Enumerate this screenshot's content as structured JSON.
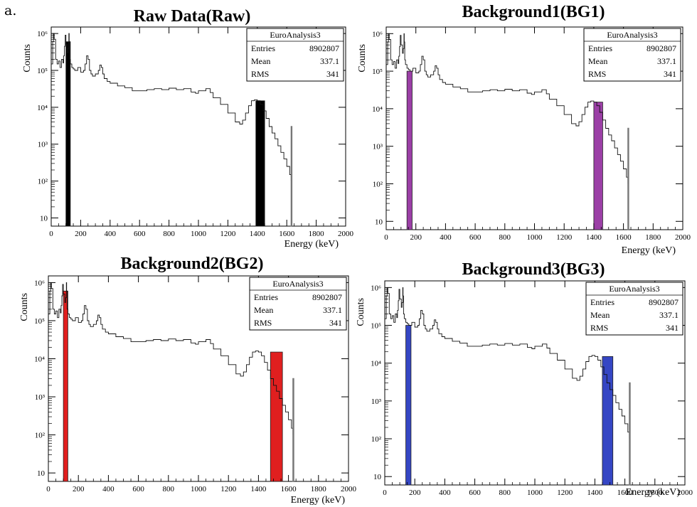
{
  "figure_label": "a.",
  "colors": {
    "raw": "#000000",
    "bg1": "#9b3fa6",
    "bg2": "#e01f1f",
    "bg3": "#3546c4"
  },
  "chart_data": [
    {
      "key": "raw",
      "type": "line",
      "title": "Raw Data(Raw)",
      "xlabel": "Energy (keV)",
      "ylabel": "Counts",
      "xlim": [
        0,
        2000
      ],
      "ylim": [
        6,
        1500000
      ],
      "yscale": "log",
      "grid": false,
      "xticks": [
        "0",
        "200",
        "400",
        "600",
        "800",
        "1000",
        "1200",
        "1400",
        "1600",
        "1800",
        "2000"
      ],
      "yticks": [
        "10",
        "10²",
        "10³",
        "10⁴",
        "10⁵",
        "10⁶"
      ],
      "stats_box": {
        "name": "EuroAnalysis3",
        "rows": [
          [
            "Entries",
            "8902807"
          ],
          [
            "Mean",
            "337.1"
          ],
          [
            "RMS",
            "341"
          ]
        ],
        "placement": "top-right"
      },
      "series": [
        {
          "x": [
            0,
            10,
            15,
            20,
            30,
            40,
            50,
            60,
            70,
            80,
            85,
            90,
            95,
            100,
            110,
            115,
            120,
            122,
            125,
            130,
            140,
            150,
            160,
            180,
            200,
            220,
            230,
            240,
            250,
            260,
            270,
            280,
            300,
            320,
            330,
            340,
            350,
            360,
            380,
            400,
            450,
            500,
            550,
            600,
            650,
            700,
            750,
            800,
            850,
            900,
            950,
            980,
            1000,
            1050,
            1080,
            1100,
            1150,
            1200,
            1250,
            1280,
            1300,
            1320,
            1340,
            1360,
            1380,
            1400,
            1420,
            1440,
            1460,
            1480,
            1500,
            1520,
            1540,
            1560,
            1580,
            1600,
            1620,
            1630
          ],
          "y": [
            150000,
            600000,
            1000000,
            700000,
            200000,
            150000,
            180000,
            120000,
            200000,
            160000,
            250000,
            450000,
            900000,
            500000,
            300000,
            400000,
            1000000,
            600000,
            200000,
            150000,
            120000,
            110000,
            100000,
            120000,
            90000,
            100000,
            150000,
            250000,
            200000,
            100000,
            80000,
            70000,
            80000,
            100000,
            140000,
            120000,
            80000,
            60000,
            50000,
            45000,
            38000,
            34000,
            28000,
            28000,
            30000,
            32000,
            30000,
            33000,
            30000,
            32000,
            26000,
            24000,
            28000,
            32000,
            25000,
            18000,
            12000,
            7000,
            4000,
            3500,
            4500,
            7000,
            11000,
            15000,
            16000,
            15000,
            12000,
            8000,
            5000,
            3000,
            2000,
            1400,
            900,
            600,
            400,
            250,
            150,
            100
          ]
        },
        {
          "x": [
            1625,
            1630,
            1635
          ],
          "y": [
            6,
            3000,
            6
          ]
        }
      ],
      "highlight_bands": [
        {
          "x": [
            100,
            130
          ],
          "height": 600000
        },
        {
          "x": [
            1390,
            1450
          ],
          "height": 15000
        }
      ]
    },
    {
      "key": "bg1",
      "type": "line",
      "title": "Background1(BG1)",
      "xlabel": "Energy (keV)",
      "ylabel": "Counts",
      "xlim": [
        0,
        2000
      ],
      "ylim": [
        6,
        1500000
      ],
      "yscale": "log",
      "grid": false,
      "xticks": [
        "0",
        "200",
        "400",
        "600",
        "800",
        "1000",
        "1200",
        "1400",
        "1600",
        "1800",
        "2000"
      ],
      "yticks": [
        "10",
        "10²",
        "10³",
        "10⁴",
        "10⁵",
        "10⁶"
      ],
      "stats_box": {
        "name": "EuroAnalysis3",
        "rows": [
          [
            "Entries",
            "8902807"
          ],
          [
            "Mean",
            "337.1"
          ],
          [
            "RMS",
            "341"
          ]
        ],
        "placement": "top-right"
      },
      "series": [
        {
          "x": [
            0,
            10,
            15,
            20,
            30,
            40,
            50,
            60,
            70,
            80,
            85,
            90,
            95,
            100,
            110,
            115,
            120,
            122,
            125,
            130,
            140,
            150,
            160,
            180,
            200,
            220,
            230,
            240,
            250,
            260,
            270,
            280,
            300,
            320,
            330,
            340,
            350,
            360,
            380,
            400,
            450,
            500,
            550,
            600,
            650,
            700,
            750,
            800,
            850,
            900,
            950,
            980,
            1000,
            1050,
            1080,
            1100,
            1150,
            1200,
            1250,
            1280,
            1300,
            1320,
            1340,
            1360,
            1380,
            1400,
            1420,
            1440,
            1460,
            1480,
            1500,
            1520,
            1540,
            1560,
            1580,
            1600,
            1620,
            1630
          ],
          "y": [
            150000,
            600000,
            1000000,
            700000,
            200000,
            150000,
            180000,
            120000,
            200000,
            160000,
            250000,
            450000,
            900000,
            500000,
            300000,
            400000,
            1000000,
            600000,
            200000,
            150000,
            120000,
            110000,
            100000,
            120000,
            90000,
            100000,
            150000,
            250000,
            200000,
            100000,
            80000,
            70000,
            80000,
            100000,
            140000,
            120000,
            80000,
            60000,
            50000,
            45000,
            38000,
            34000,
            28000,
            28000,
            30000,
            32000,
            30000,
            33000,
            30000,
            32000,
            26000,
            24000,
            28000,
            32000,
            25000,
            18000,
            12000,
            7000,
            4000,
            3500,
            4500,
            7000,
            11000,
            15000,
            16000,
            15000,
            12000,
            8000,
            5000,
            3000,
            2000,
            1400,
            900,
            600,
            400,
            250,
            150,
            100
          ]
        },
        {
          "x": [
            1625,
            1630,
            1635
          ],
          "y": [
            6,
            3000,
            6
          ]
        }
      ],
      "highlight_bands": [
        {
          "x": [
            140,
            175
          ],
          "height": 100000
        },
        {
          "x": [
            1400,
            1460
          ],
          "height": 15000
        }
      ]
    },
    {
      "key": "bg2",
      "type": "line",
      "title": "Background2(BG2)",
      "xlabel": "Energy (keV)",
      "ylabel": "Counts",
      "xlim": [
        0,
        2000
      ],
      "ylim": [
        6,
        1500000
      ],
      "yscale": "log",
      "grid": false,
      "xticks": [
        "0",
        "200",
        "400",
        "600",
        "800",
        "1000",
        "1200",
        "1400",
        "1600",
        "1800",
        "2000"
      ],
      "yticks": [
        "10",
        "10²",
        "10³",
        "10⁴",
        "10⁵",
        "10⁶"
      ],
      "stats_box": {
        "name": "EuroAnalysis3",
        "rows": [
          [
            "Entries",
            "8902807"
          ],
          [
            "Mean",
            "337.1"
          ],
          [
            "RMS",
            "341"
          ]
        ],
        "placement": "top-right"
      },
      "series": [
        {
          "x": [
            0,
            10,
            15,
            20,
            30,
            40,
            50,
            60,
            70,
            80,
            85,
            90,
            95,
            100,
            110,
            115,
            120,
            122,
            125,
            130,
            140,
            150,
            160,
            180,
            200,
            220,
            230,
            240,
            250,
            260,
            270,
            280,
            300,
            320,
            330,
            340,
            350,
            360,
            380,
            400,
            450,
            500,
            550,
            600,
            650,
            700,
            750,
            800,
            850,
            900,
            950,
            980,
            1000,
            1050,
            1080,
            1100,
            1150,
            1200,
            1250,
            1280,
            1300,
            1320,
            1340,
            1360,
            1380,
            1400,
            1420,
            1440,
            1460,
            1480,
            1500,
            1520,
            1540,
            1560,
            1580,
            1600,
            1620,
            1630
          ],
          "y": [
            150000,
            600000,
            1000000,
            700000,
            200000,
            150000,
            180000,
            120000,
            200000,
            160000,
            250000,
            450000,
            900000,
            500000,
            300000,
            400000,
            1000000,
            600000,
            200000,
            150000,
            120000,
            110000,
            100000,
            120000,
            90000,
            100000,
            150000,
            250000,
            200000,
            100000,
            80000,
            70000,
            80000,
            100000,
            140000,
            120000,
            80000,
            60000,
            50000,
            45000,
            38000,
            34000,
            28000,
            28000,
            30000,
            32000,
            30000,
            33000,
            30000,
            32000,
            26000,
            24000,
            28000,
            32000,
            25000,
            18000,
            12000,
            7000,
            4000,
            3500,
            4500,
            7000,
            11000,
            15000,
            16000,
            15000,
            12000,
            8000,
            5000,
            3000,
            2000,
            1400,
            900,
            600,
            400,
            250,
            150,
            100
          ]
        },
        {
          "x": [
            1625,
            1630,
            1635
          ],
          "y": [
            6,
            3000,
            6
          ]
        }
      ],
      "highlight_bands": [
        {
          "x": [
            100,
            130
          ],
          "height": 600000
        },
        {
          "x": [
            1480,
            1560
          ],
          "height": 15000
        }
      ]
    },
    {
      "key": "bg3",
      "type": "line",
      "title": "Background3(BG3)",
      "xlabel": "Energy (keV)",
      "ylabel": "Counts",
      "xlim": [
        0,
        2000
      ],
      "ylim": [
        6,
        1500000
      ],
      "yscale": "log",
      "grid": false,
      "xticks": [
        "0",
        "200",
        "400",
        "600",
        "800",
        "1000",
        "1200",
        "1400",
        "1600",
        "1800",
        "2000"
      ],
      "yticks": [
        "10",
        "10²",
        "10³",
        "10⁴",
        "10⁵",
        "10⁶"
      ],
      "stats_box": {
        "name": "EuroAnalysis3",
        "rows": [
          [
            "Entries",
            "8902807"
          ],
          [
            "Mean",
            "337.1"
          ],
          [
            "RMS",
            "341"
          ]
        ],
        "placement": "top-right"
      },
      "series": [
        {
          "x": [
            0,
            10,
            15,
            20,
            30,
            40,
            50,
            60,
            70,
            80,
            85,
            90,
            95,
            100,
            110,
            115,
            120,
            122,
            125,
            130,
            140,
            150,
            160,
            180,
            200,
            220,
            230,
            240,
            250,
            260,
            270,
            280,
            300,
            320,
            330,
            340,
            350,
            360,
            380,
            400,
            450,
            500,
            550,
            600,
            650,
            700,
            750,
            800,
            850,
            900,
            950,
            980,
            1000,
            1050,
            1080,
            1100,
            1150,
            1200,
            1250,
            1280,
            1300,
            1320,
            1340,
            1360,
            1380,
            1400,
            1420,
            1440,
            1460,
            1480,
            1500,
            1520,
            1540,
            1560,
            1580,
            1600,
            1620,
            1630
          ],
          "y": [
            150000,
            600000,
            1000000,
            700000,
            200000,
            150000,
            180000,
            120000,
            200000,
            160000,
            250000,
            450000,
            900000,
            500000,
            300000,
            400000,
            1000000,
            600000,
            200000,
            150000,
            120000,
            110000,
            100000,
            120000,
            90000,
            100000,
            150000,
            250000,
            200000,
            100000,
            80000,
            70000,
            80000,
            100000,
            140000,
            120000,
            80000,
            60000,
            50000,
            45000,
            38000,
            34000,
            28000,
            28000,
            30000,
            32000,
            30000,
            33000,
            30000,
            32000,
            26000,
            24000,
            28000,
            32000,
            25000,
            18000,
            12000,
            7000,
            4000,
            3500,
            4500,
            7000,
            11000,
            15000,
            16000,
            15000,
            12000,
            8000,
            5000,
            3000,
            2000,
            1400,
            900,
            600,
            400,
            250,
            150,
            100
          ]
        },
        {
          "x": [
            1625,
            1630,
            1635
          ],
          "y": [
            6,
            3000,
            6
          ]
        }
      ],
      "highlight_bands": [
        {
          "x": [
            140,
            175
          ],
          "height": 100000
        },
        {
          "x": [
            1450,
            1520
          ],
          "height": 15000
        }
      ]
    }
  ]
}
